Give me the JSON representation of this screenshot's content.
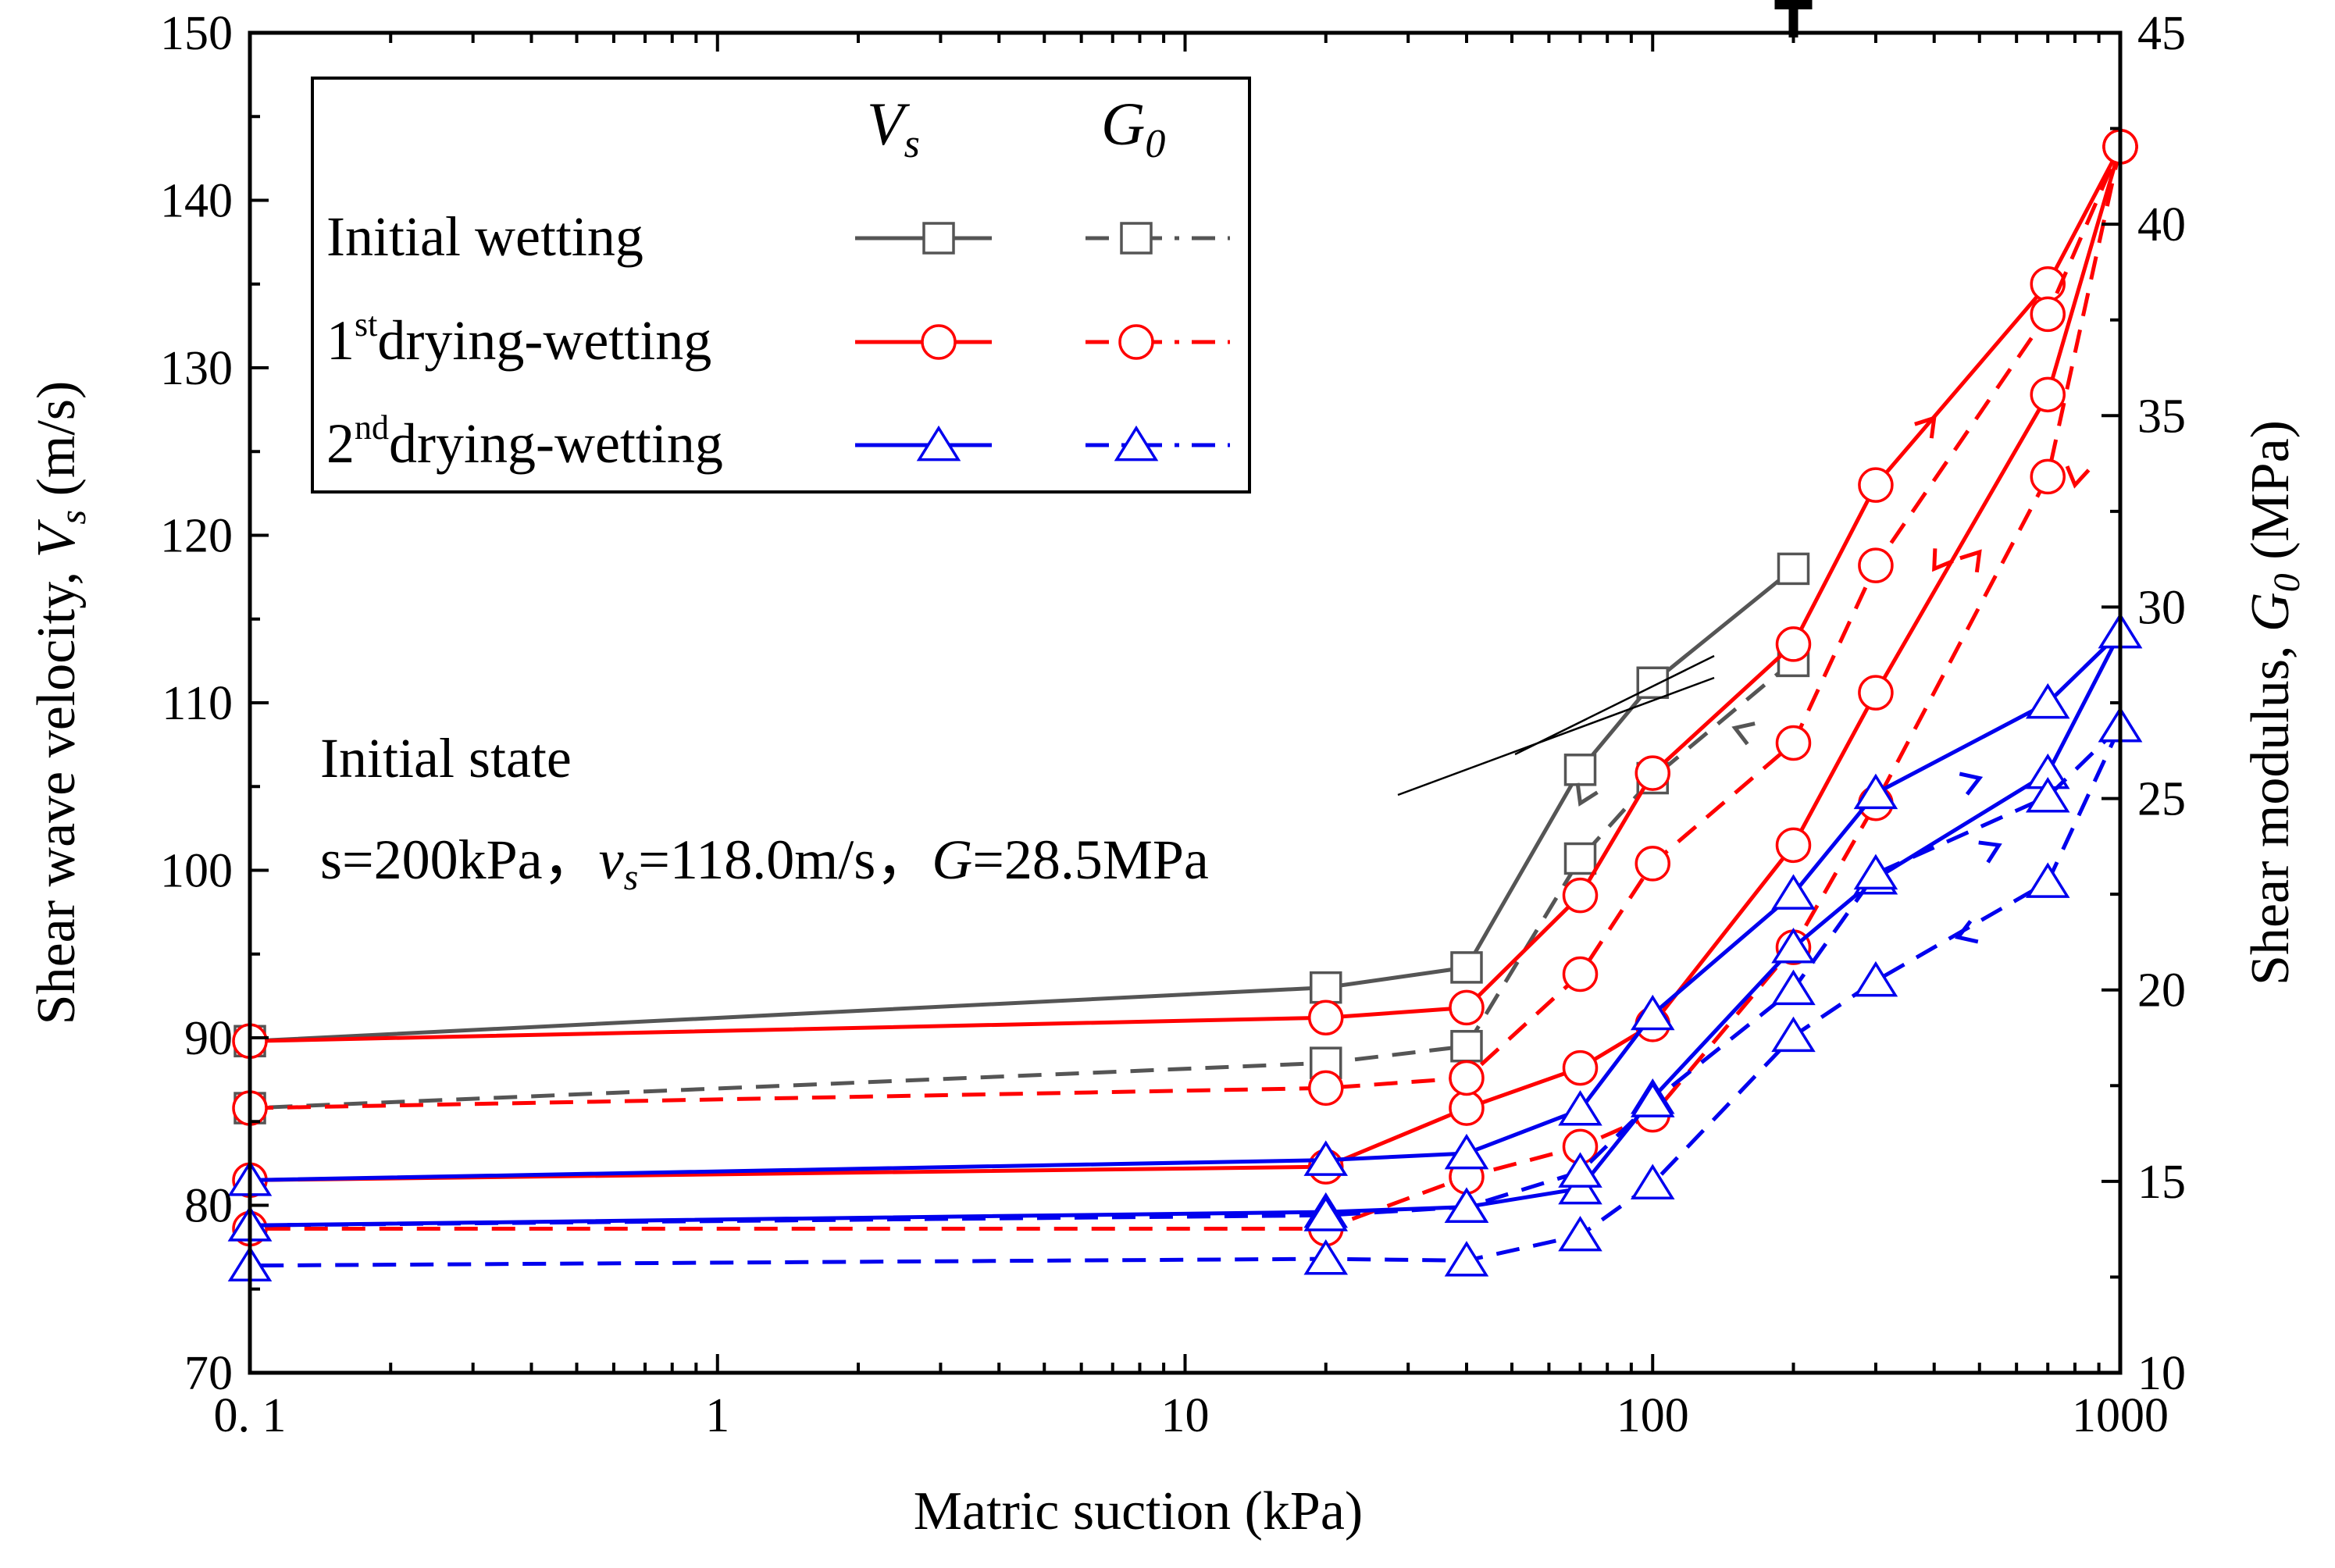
{
  "chart_data": {
    "type": "line",
    "x_scale": "log",
    "xlabel": "Matric suction (kPa)",
    "ylabel_left": {
      "prefix": "Shear wave velocity, ",
      "symbol": "V",
      "sub": "s",
      "unit": " (m/s)"
    },
    "ylabel_right": {
      "prefix": "Shear modulus, ",
      "symbol": "G",
      "sub": "0",
      "unit": " (MPa)"
    },
    "xlim": [
      0.1,
      1000
    ],
    "ylim_left": [
      70,
      150
    ],
    "ylim_right": [
      10,
      45
    ],
    "x_ticks": [
      {
        "value": 0.1,
        "label": "0. 1"
      },
      {
        "value": 1,
        "label": "1"
      },
      {
        "value": 10,
        "label": "10"
      },
      {
        "value": 100,
        "label": "100"
      },
      {
        "value": 1000,
        "label": "1000"
      }
    ],
    "y_left_ticks": [
      70,
      80,
      90,
      100,
      110,
      120,
      130,
      140,
      150
    ],
    "y_right_ticks": [
      10,
      15,
      20,
      25,
      30,
      35,
      40,
      45
    ],
    "legend": {
      "col_vs": {
        "symbol": "V",
        "sub": "s"
      },
      "col_g0": {
        "symbol": "G",
        "sub": "0"
      },
      "rows": [
        {
          "label": "Initial wetting",
          "sup": "",
          "label_prefix": "Initial wetting",
          "color": "#555555",
          "marker": "square"
        },
        {
          "label": "1st drying-wetting",
          "label_prefix": "1",
          "sup": "st",
          "label_rest": "drying-wetting",
          "color": "#ff0000",
          "marker": "circle"
        },
        {
          "label": "2nd drying-wetting",
          "label_prefix": "2",
          "sup": "nd",
          "label_rest": "drying-wetting",
          "color": "#0000ee",
          "marker": "triangle"
        }
      ]
    },
    "annotation": {
      "line1": "Initial state",
      "line2_s": "s=200kPa，",
      "line2_vs_symbol": "v",
      "line2_vs_sub": "s",
      "line2_vs_value": "=118.0m/s，",
      "line2_g_symbol": "G",
      "line2_g_value": "=28.5MPa",
      "targets": [
        {
          "x": 200,
          "y_left": 118
        },
        {
          "x": 200,
          "y_left": 112.5
        }
      ]
    },
    "series": [
      {
        "name": "Initial wetting Vs",
        "color": "#555555",
        "dash": "solid",
        "marker": "square",
        "axis": "left",
        "x": [
          200,
          100,
          70,
          40,
          20,
          0.1
        ],
        "y": [
          118,
          111.2,
          106,
          94.2,
          93,
          89.8
        ]
      },
      {
        "name": "Initial wetting G0",
        "color": "#555555",
        "dash": "dashed",
        "marker": "square",
        "axis": "left",
        "x": [
          200,
          100,
          70,
          40,
          20,
          0.1
        ],
        "y": [
          112.5,
          105.5,
          100.7,
          89.5,
          88.5,
          85.8
        ]
      },
      {
        "name": "1st drying Vs",
        "color": "#ff0000",
        "dash": "solid",
        "marker": "circle",
        "axis": "left",
        "x": [
          0.1,
          20,
          40,
          70,
          100,
          200,
          300,
          700,
          1000
        ],
        "y": [
          89.8,
          91.2,
          91.8,
          98.5,
          105.8,
          113.5,
          123,
          135,
          143.2
        ]
      },
      {
        "name": "1st wetting Vs",
        "color": "#ff0000",
        "dash": "solid",
        "marker": "circle",
        "axis": "left",
        "x": [
          1000,
          700,
          300,
          200,
          100,
          70,
          40,
          20,
          0.1
        ],
        "y": [
          143.2,
          128.4,
          110.6,
          101.5,
          90.8,
          88.2,
          85.8,
          82.3,
          81.5
        ]
      },
      {
        "name": "1st drying G0",
        "color": "#ff0000",
        "dash": "dashed",
        "marker": "circle",
        "axis": "left",
        "x": [
          0.1,
          20,
          40,
          70,
          100,
          200,
          300,
          700,
          1000
        ],
        "y": [
          85.8,
          87,
          87.6,
          93.8,
          100.4,
          107.6,
          118.2,
          133.2,
          143.2
        ]
      },
      {
        "name": "1st wetting G0",
        "color": "#ff0000",
        "dash": "dashed",
        "marker": "circle",
        "axis": "left",
        "x": [
          1000,
          700,
          300,
          200,
          100,
          70,
          40,
          20,
          0.1
        ],
        "y": [
          143.2,
          123.5,
          104,
          95.4,
          85.4,
          83.5,
          81.7,
          78.6,
          78.6
        ]
      },
      {
        "name": "2nd drying Vs",
        "color": "#0000ee",
        "dash": "solid",
        "marker": "triangle",
        "axis": "left",
        "x": [
          0.1,
          20,
          40,
          70,
          100,
          200,
          300,
          700,
          1000
        ],
        "y": [
          81.5,
          82.7,
          83.1,
          85.7,
          91.4,
          98.6,
          104.6,
          110,
          114.2
        ]
      },
      {
        "name": "2nd wetting Vs",
        "color": "#0000ee",
        "dash": "solid",
        "marker": "triangle",
        "axis": "left",
        "x": [
          1000,
          700,
          300,
          200,
          100,
          70,
          40,
          20,
          0.1
        ],
        "y": [
          114.2,
          105.8,
          99.5,
          95.4,
          86.4,
          81,
          79.9,
          79.6,
          78.8
        ]
      },
      {
        "name": "2nd drying G0",
        "color": "#0000ee",
        "dash": "dashed",
        "marker": "triangle",
        "axis": "left",
        "x": [
          0.1,
          20,
          40,
          70,
          100,
          200,
          300,
          700,
          1000
        ],
        "y": [
          78.8,
          79.4,
          79.9,
          82,
          86.2,
          92.9,
          99.8,
          104.4,
          108.6
        ]
      },
      {
        "name": "2nd wetting G0",
        "color": "#0000ee",
        "dash": "dashed",
        "marker": "triangle",
        "axis": "left",
        "x": [
          1000,
          700,
          300,
          200,
          100,
          70,
          40,
          20,
          0.1
        ],
        "y": [
          108.6,
          99.3,
          93.4,
          90.1,
          81.3,
          78.2,
          76.7,
          76.8,
          76.4
        ]
      }
    ],
    "direction_arrows": [
      {
        "x": 70,
        "y": 104,
        "angle": 115,
        "color": "#555555"
      },
      {
        "x": 150,
        "y": 108.5,
        "angle": 200,
        "color": "#555555"
      },
      {
        "x": 400,
        "y": 127,
        "angle": -50,
        "color": "#ff0000"
      },
      {
        "x": 500,
        "y": 119,
        "angle": -50,
        "color": "#ff0000"
      },
      {
        "x": 400,
        "y": 118,
        "angle": 125,
        "color": "#ff0000"
      },
      {
        "x": 800,
        "y": 123,
        "angle": 100,
        "color": "#ff0000"
      },
      {
        "x": 500,
        "y": 105.5,
        "angle": -20,
        "color": "#0000ee"
      },
      {
        "x": 550,
        "y": 101.5,
        "angle": -25,
        "color": "#0000ee"
      },
      {
        "x": 450,
        "y": 96,
        "angle": 160,
        "color": "#0000ee"
      }
    ]
  }
}
